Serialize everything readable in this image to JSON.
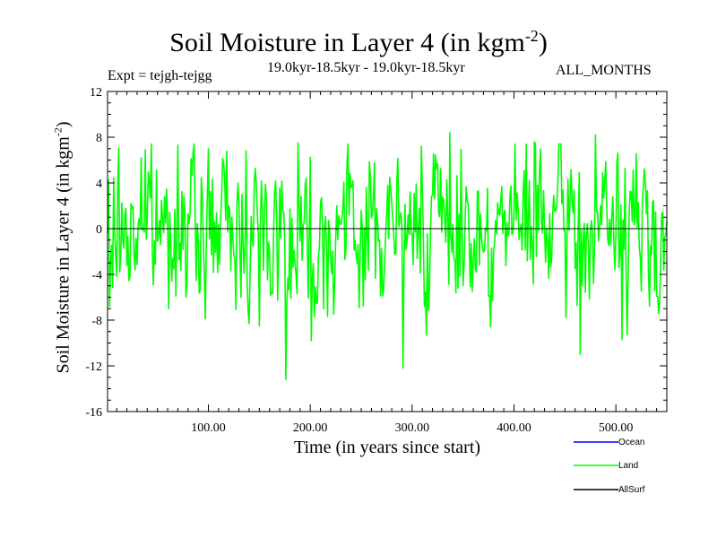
{
  "chart_data": {
    "type": "line",
    "title": "Soil Moisture in Layer 4 (in kgm",
    "title_sup": "-2",
    "title_close": ")",
    "expt": "Expt = tejgh-tejgg",
    "period": "19.0kyr-18.5kyr - 19.0kyr-18.5kyr",
    "months": "ALL_MONTHS",
    "ylabel": "Soil Moisture in Layer 4 (in kgm",
    "ylabel_sup": "-2",
    "ylabel_close": ")",
    "xlabel": "Time (in years since start)",
    "xlim": [
      1,
      550
    ],
    "ylim": [
      -16,
      12
    ],
    "yticks": [
      12,
      8,
      4,
      0,
      -4,
      -8,
      -12,
      -16
    ],
    "xticks": [
      {
        "value": 100,
        "label": "100.00"
      },
      {
        "value": 200,
        "label": "200.00"
      },
      {
        "value": 300,
        "label": "300.00"
      },
      {
        "value": 400,
        "label": "400.00"
      },
      {
        "value": 500,
        "label": "500.00"
      }
    ],
    "zero_line": true,
    "series": [
      {
        "name": "Ocean",
        "color": "#0000ff",
        "values": []
      },
      {
        "name": "Land",
        "color": "#00ff00",
        "seed": 7,
        "amplitude": 3.2,
        "extremes": [
          {
            "x": 3,
            "y": -6.8
          },
          {
            "x": 34,
            "y": 6.2
          },
          {
            "x": 70,
            "y": 7.3
          },
          {
            "x": 137,
            "y": 6.8
          },
          {
            "x": 150,
            "y": -8.5
          },
          {
            "x": 176,
            "y": -13.2
          },
          {
            "x": 188,
            "y": 7.5
          },
          {
            "x": 201,
            "y": -9.8
          },
          {
            "x": 291,
            "y": -12.2
          },
          {
            "x": 309,
            "y": 7.2
          },
          {
            "x": 337,
            "y": 8.4
          },
          {
            "x": 420,
            "y": 7.6
          },
          {
            "x": 465,
            "y": -11.0
          },
          {
            "x": 480,
            "y": 8.2
          },
          {
            "x": 506,
            "y": -9.7
          },
          {
            "x": 540,
            "y": -5.9
          }
        ]
      },
      {
        "name": "AllSurf",
        "color": "#000000",
        "values": []
      }
    ]
  }
}
